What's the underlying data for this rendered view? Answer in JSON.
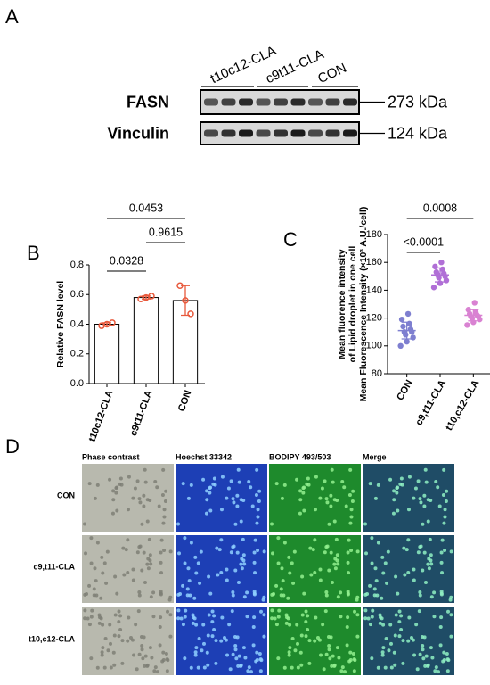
{
  "panel_a": {
    "label": "A",
    "lanes": [
      "t10c12-CLA",
      "c9t11-CLA",
      "CON"
    ],
    "blots": [
      {
        "protein": "FASN",
        "size": "273 kDa"
      },
      {
        "protein": "Vinculin",
        "size": "124 kDa"
      }
    ]
  },
  "chart_data": [
    {
      "type": "bar",
      "panel": "B",
      "y_label": "Relative FASN level",
      "categories": [
        "t10c12-CLA",
        "c9t11-CLA",
        "CON"
      ],
      "values": [
        0.4,
        0.58,
        0.56
      ],
      "errors": [
        0.01,
        0.01,
        0.1
      ],
      "points": [
        [
          0.39,
          0.4,
          0.41
        ],
        [
          0.57,
          0.58,
          0.59
        ],
        [
          0.66,
          0.56,
          0.47
        ]
      ],
      "color": "#ffffff",
      "edge_color": "#000000",
      "point_color": "#e8593c",
      "ylim": [
        0,
        0.8
      ],
      "yticks": [
        {
          "value": 0,
          "label": "0.0"
        },
        0.2,
        0.4,
        0.6,
        0.8
      ],
      "comparisons": [
        {
          "groups": [
            0,
            2
          ],
          "label": "0.0453"
        },
        {
          "groups": [
            1,
            2
          ],
          "label": "0.9615"
        },
        {
          "groups": [
            0,
            1
          ],
          "label": "0.0328"
        }
      ]
    },
    {
      "type": "scatter",
      "panel": "C",
      "y_label": [
        "Mean fluorence intensity",
        "of Lipid droplet in one cell",
        "Mean Fluorescence Intensity (×10³ A.U./cell)"
      ],
      "categories": [
        "CON",
        "c9,t11-CLA",
        "t10,c12-CLA"
      ],
      "values": [
        111,
        151,
        122
      ],
      "errors": [
        6,
        5,
        4
      ],
      "points": [
        [
          100,
          103,
          106,
          108,
          110,
          110,
          112,
          114,
          116,
          119,
          123
        ],
        [
          142,
          145,
          147,
          149,
          150,
          151,
          152,
          153,
          155,
          157,
          160
        ],
        [
          115,
          117,
          119,
          120,
          121,
          121,
          122,
          123,
          124,
          126,
          131
        ]
      ],
      "colors": [
        "#7e7fd0",
        "#b06fd6",
        "#d982d2"
      ],
      "ylim": [
        80,
        180
      ],
      "yticks": [
        80,
        100,
        120,
        140,
        160,
        180
      ],
      "comparisons": [
        {
          "groups": [
            0,
            2
          ],
          "label": "0.0008"
        },
        {
          "groups": [
            0,
            1
          ],
          "label": "<0.0001"
        }
      ]
    }
  ],
  "panel_d": {
    "label": "D",
    "columns": [
      "Phase contrast",
      "Hoechst 33342",
      "BODIPY 493/503",
      "Merge"
    ],
    "rows": [
      "CON",
      "c9,t11-CLA",
      "t10,c12-CLA"
    ]
  }
}
